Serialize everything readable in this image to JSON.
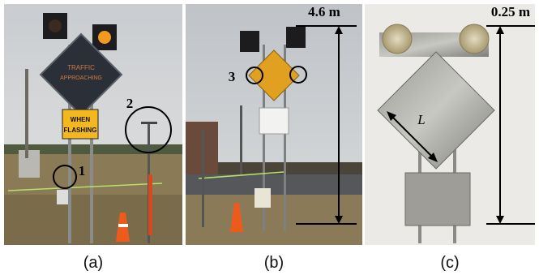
{
  "panels": [
    {
      "caption": "(a)",
      "sign_text": [
        "TRAFFIC",
        "APPROACHING"
      ],
      "plate_text": [
        "WHEN",
        "FLASHING"
      ],
      "labels": [
        "1",
        "2"
      ]
    },
    {
      "caption": "(b)",
      "labels": [
        "3"
      ],
      "height": "4.6 m"
    },
    {
      "caption": "(c)",
      "dimension": "L",
      "height": "0.25 m"
    }
  ]
}
